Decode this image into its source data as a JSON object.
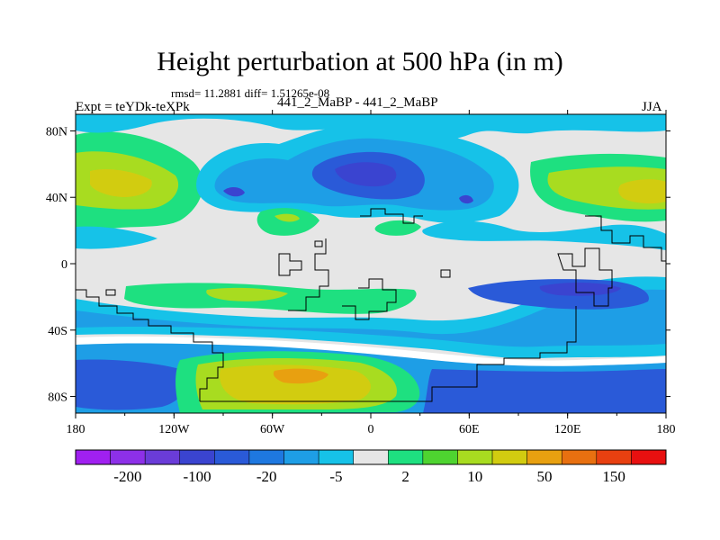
{
  "title": "Height perturbation at 500 hPa (in m)",
  "stats": "rmsd= 11.2881 diff= 1.51265e-08",
  "experiment": "Expt = teYDk-teXPk",
  "subtitle": "441_2_MaBP - 441_2_MaBP",
  "season": "JJA",
  "colors": {
    "neutral": "#e6e6e6",
    "scale": [
      "#a020f0",
      "#8d30e8",
      "#6a3cd8",
      "#3a44d0",
      "#2a5ad8",
      "#1e78e0",
      "#1e9ee6",
      "#16c2e8",
      "#e6e6e6",
      "#1ee080",
      "#4ed430",
      "#a8dc20",
      "#d2cc10",
      "#e8a010",
      "#e87010",
      "#e84010",
      "#e81010"
    ]
  },
  "chart_data": {
    "type": "heatmap",
    "title": "Height perturbation at 500 hPa (in m)",
    "x_ticks": [
      "180",
      "120W",
      "60W",
      "0",
      "60E",
      "120E",
      "180"
    ],
    "y_ticks": [
      "80N",
      "40N",
      "0",
      "40S",
      "80S"
    ],
    "x_range": [
      -180,
      180
    ],
    "y_range": [
      -90,
      90
    ],
    "colorbar_labels": [
      "-200",
      "-100",
      "-20",
      "-5",
      "2",
      "10",
      "50",
      "150"
    ],
    "colorbar_levels": 17
  }
}
